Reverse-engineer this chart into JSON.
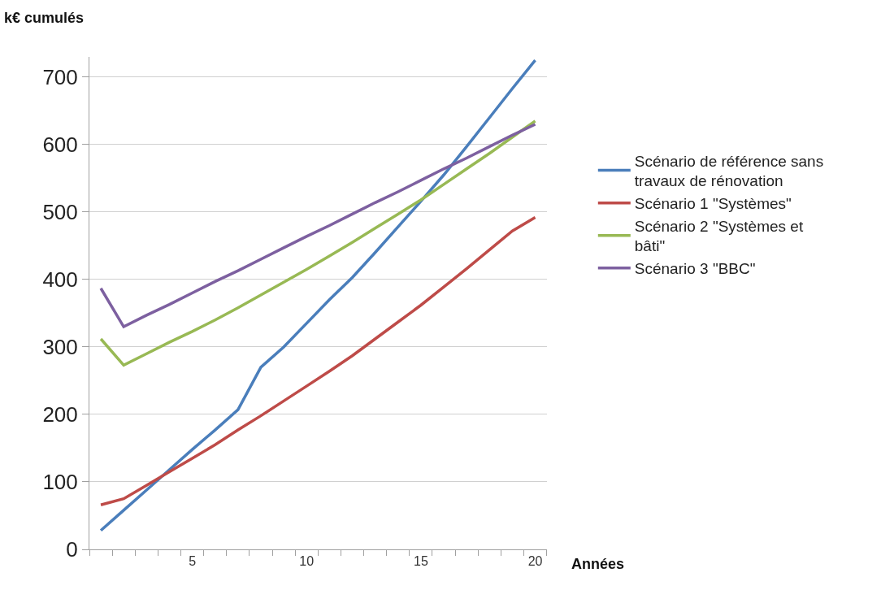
{
  "chart_data": {
    "type": "line",
    "ylabel": "k€ cumulés",
    "xlabel": "Années",
    "x": [
      1,
      2,
      3,
      4,
      5,
      6,
      7,
      8,
      9,
      10,
      11,
      12,
      13,
      14,
      15,
      16,
      17,
      18,
      19,
      20
    ],
    "series": [
      {
        "name": "Scénario de référence sans travaux de rénovation",
        "color": "#4a7ebb",
        "values": [
          28,
          58,
          88,
          118,
          148,
          177,
          207,
          270,
          300,
          335,
          370,
          403,
          440,
          478,
          516,
          555,
          597,
          640,
          683,
          725
        ]
      },
      {
        "name": "Scénario 1 \"Systèmes\"",
        "color": "#be4b48",
        "values": [
          66,
          75,
          95,
          115,
          135,
          155,
          177,
          198,
          220,
          242,
          264,
          287,
          312,
          337,
          362,
          389,
          416,
          444,
          472,
          492
        ]
      },
      {
        "name": "Scénario 2 \"Systèmes et bâti\"",
        "color": "#98b954",
        "values": [
          312,
          273,
          290,
          307,
          323,
          340,
          358,
          377,
          396,
          415,
          435,
          455,
          476,
          497,
          518,
          541,
          564,
          587,
          611,
          635
        ]
      },
      {
        "name": "Scénario 3 \"BBC\"",
        "color": "#7d60a0",
        "values": [
          387,
          330,
          347,
          363,
          380,
          397,
          413,
          430,
          447,
          464,
          480,
          497,
          514,
          530,
          547,
          564,
          580,
          597,
          614,
          630
        ]
      }
    ],
    "xlim": [
      0.5,
      20.5
    ],
    "xticks": [
      {
        "value": 0.5,
        "label": null
      },
      {
        "value": 1.5,
        "label": null
      },
      {
        "value": 2.5,
        "label": null
      },
      {
        "value": 3.5,
        "label": null
      },
      {
        "value": 4.5,
        "label": null
      },
      5,
      {
        "value": 5.5,
        "label": null
      },
      {
        "value": 6.5,
        "label": null
      },
      {
        "value": 7.5,
        "label": null
      },
      {
        "value": 8.5,
        "label": null
      },
      {
        "value": 9.5,
        "label": null
      },
      10,
      {
        "value": 10.5,
        "label": null
      },
      {
        "value": 11.5,
        "label": null
      },
      {
        "value": 12.5,
        "label": null
      },
      {
        "value": 13.5,
        "label": null
      },
      {
        "value": 14.5,
        "label": null
      },
      15,
      {
        "value": 15.5,
        "label": null
      },
      {
        "value": 16.5,
        "label": null
      },
      {
        "value": 17.5,
        "label": null
      },
      {
        "value": 18.5,
        "label": null
      },
      {
        "value": 19.5,
        "label": null
      },
      20,
      {
        "value": 20.5,
        "label": null
      }
    ],
    "ylim": [
      0,
      730
    ],
    "yticks": [
      0,
      100,
      200,
      300,
      400,
      500,
      600,
      700
    ],
    "grid": "y",
    "legend": "right",
    "marker": "none",
    "line_style": "solid"
  }
}
